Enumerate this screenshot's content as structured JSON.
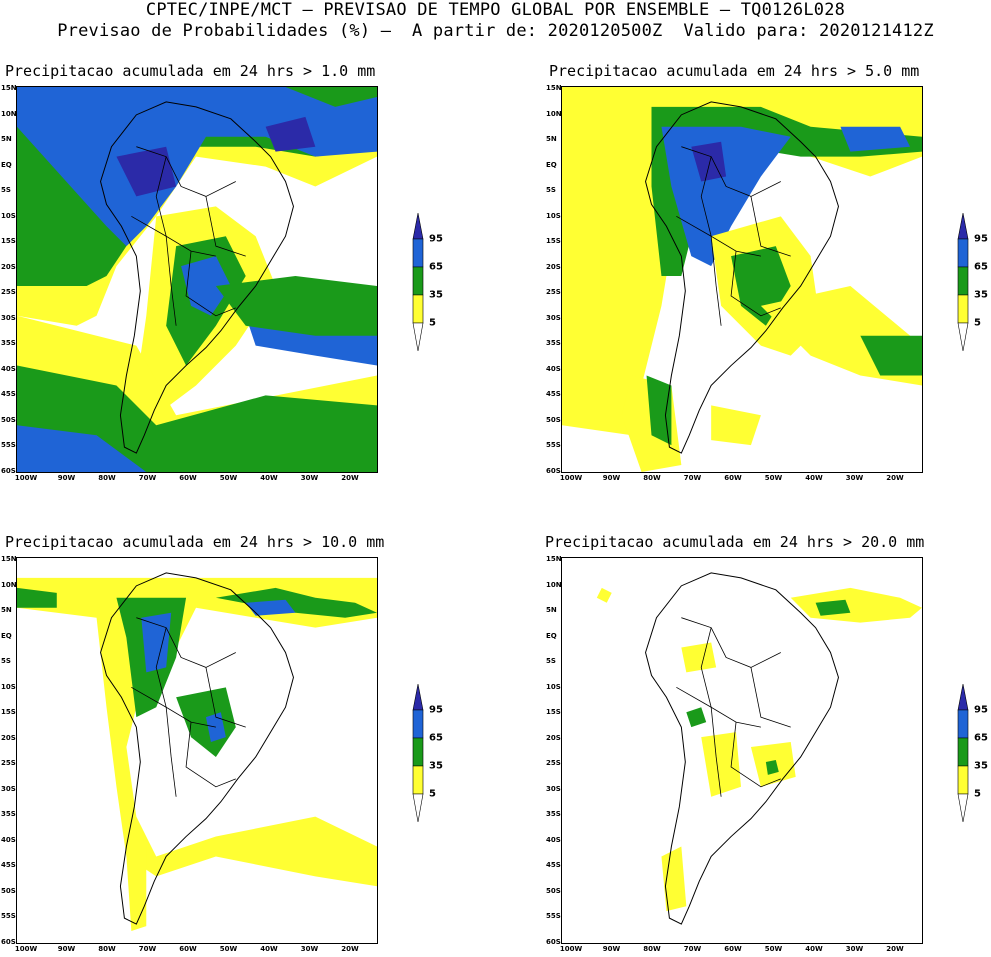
{
  "header": {
    "line1": "CPTEC/INPE/MCT — PREVISAO DE TEMPO GLOBAL POR ENSEMBLE — TQ0126L028",
    "line2": "Previsao de Probabilidades (%) —  A partir de: 2020120500Z  Valido para: 2020121412Z"
  },
  "panels": [
    {
      "title": "Precipitacao acumulada em 24 hrs > 1.0 mm"
    },
    {
      "title": "Precipitacao acumulada em 24 hrs > 5.0 mm"
    },
    {
      "title": "Precipitacao acumulada em 24 hrs > 10.0 mm"
    },
    {
      "title": "Precipitacao acumulada em 24 hrs > 20.0 mm"
    }
  ],
  "lat_labels": [
    "15N",
    "10N",
    "5N",
    "EQ",
    "5S",
    "10S",
    "15S",
    "20S",
    "25S",
    "30S",
    "35S",
    "40S",
    "45S",
    "50S",
    "55S",
    "60S"
  ],
  "lon_labels": [
    "100W",
    "90W",
    "80W",
    "70W",
    "60W",
    "50W",
    "40W",
    "30W",
    "20W"
  ],
  "legend": {
    "labels": [
      "95",
      "65",
      "35",
      "5"
    ],
    "colors": {
      "c5": "#ffff33",
      "c35": "#1a9a1a",
      "c65": "#1f64d6",
      "c95": "#2b2aa8"
    }
  }
}
